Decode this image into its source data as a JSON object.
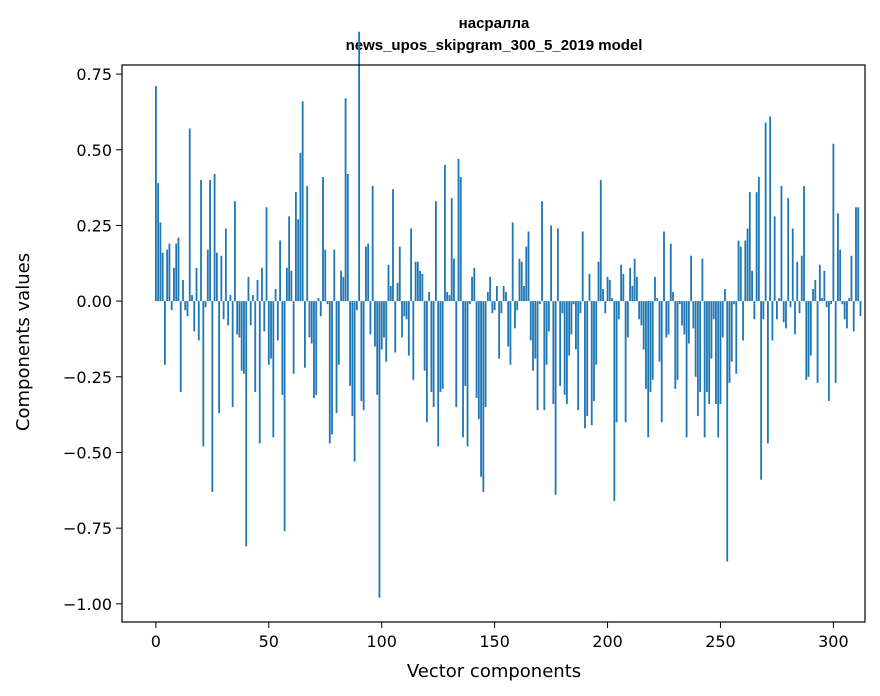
{
  "chart_data": {
    "type": "bar",
    "title_lines": [
      "насралла",
      "news_upos_skipgram_300_5_2019 model"
    ],
    "xlabel": "Vector components",
    "ylabel": "Components values",
    "xlim": [
      -15,
      314
    ],
    "ylim": [
      -1.06,
      0.78
    ],
    "xticks": [
      0,
      50,
      100,
      150,
      200,
      250,
      300
    ],
    "xtick_labels": [
      "0",
      "50",
      "100",
      "150",
      "200",
      "250",
      "300"
    ],
    "yticks": [
      0.75,
      0.5,
      0.25,
      0.0,
      -0.25,
      -0.5,
      -0.75,
      -1.0
    ],
    "ytick_labels": [
      "0.75",
      "0.50",
      "0.25",
      "0.00",
      "−0.25",
      "−0.50",
      "−0.75",
      "−1.00"
    ],
    "grid": false,
    "bar_color": "#1f77b4",
    "values": [
      0.71,
      0.39,
      0.26,
      0.16,
      -0.21,
      0.17,
      0.19,
      -0.03,
      0.11,
      0.19,
      0.21,
      -0.3,
      0.07,
      -0.03,
      -0.05,
      0.57,
      0.02,
      -0.1,
      0.11,
      -0.13,
      0.4,
      -0.48,
      -0.02,
      0.17,
      0.4,
      -0.63,
      0.42,
      0.16,
      -0.37,
      0.15,
      -0.06,
      0.24,
      -0.08,
      0.02,
      -0.35,
      0.33,
      -0.11,
      -0.12,
      -0.23,
      -0.24,
      -0.81,
      0.08,
      -0.08,
      0.02,
      -0.3,
      0.07,
      -0.47,
      0.11,
      -0.1,
      0.31,
      -0.21,
      -0.19,
      -0.45,
      0.04,
      -0.13,
      0.2,
      -0.31,
      -0.76,
      0.11,
      0.28,
      0.1,
      -0.24,
      0.36,
      0.27,
      0.49,
      0.66,
      -0.22,
      0.38,
      -0.12,
      -0.14,
      -0.32,
      -0.31,
      0.01,
      -0.05,
      0.41,
      0.17,
      -0.01,
      -0.47,
      -0.44,
      0.17,
      -0.37,
      -0.21,
      0.1,
      0.08,
      0.67,
      0.42,
      -0.28,
      -0.38,
      -0.53,
      -0.03,
      0.89,
      -0.33,
      -0.36,
      0.18,
      0.19,
      -0.11,
      0.38,
      -0.15,
      -0.31,
      -0.98,
      -0.16,
      -0.12,
      -0.2,
      0.12,
      0.05,
      0.37,
      -0.17,
      0.06,
      0.18,
      -0.12,
      -0.05,
      -0.06,
      -0.18,
      0.24,
      -0.26,
      0.13,
      0.13,
      0.1,
      0.09,
      -0.23,
      -0.4,
      0.03,
      -0.3,
      -0.35,
      0.33,
      -0.48,
      -0.3,
      -0.29,
      0.45,
      0.03,
      0.02,
      0.34,
      0.14,
      -0.35,
      0.47,
      0.41,
      -0.45,
      -0.28,
      -0.48,
      -0.01,
      0.08,
      0.11,
      -0.32,
      -0.39,
      -0.58,
      -0.63,
      -0.35,
      0.03,
      0.08,
      -0.04,
      -0.03,
      0.05,
      -0.19,
      -0.04,
      0.05,
      0.03,
      -0.15,
      -0.21,
      0.26,
      -0.09,
      -0.03,
      0.14,
      0.13,
      0.05,
      0.18,
      0.23,
      -0.13,
      -0.23,
      -0.19,
      -0.36,
      -0.01,
      0.33,
      -0.36,
      -0.21,
      -0.1,
      0.25,
      -0.34,
      -0.64,
      0.24,
      -0.28,
      -0.04,
      -0.31,
      -0.34,
      -0.18,
      -0.11,
      -0.01,
      -0.16,
      -0.36,
      -0.04,
      0.23,
      -0.42,
      -0.38,
      0.09,
      -0.41,
      -0.33,
      -0.21,
      0.13,
      0.4,
      0.04,
      -0.04,
      0.08,
      0.07,
      0.01,
      -0.66,
      -0.4,
      -0.06,
      0.12,
      0.09,
      -0.4,
      -0.12,
      0.11,
      0.05,
      0.14,
      0.08,
      -0.06,
      -0.08,
      -0.16,
      -0.29,
      -0.45,
      -0.3,
      -0.26,
      0.08,
      0.01,
      -0.2,
      -0.4,
      0.23,
      -0.12,
      -0.11,
      0.19,
      0.03,
      -0.29,
      -0.26,
      -0.01,
      -0.08,
      -0.11,
      -0.45,
      -0.14,
      0.15,
      -0.09,
      -0.25,
      -0.38,
      -0.3,
      0.14,
      -0.45,
      -0.3,
      -0.34,
      -0.19,
      -0.06,
      -0.34,
      -0.45,
      -0.34,
      -0.12,
      0.04,
      -0.86,
      -0.27,
      -0.2,
      -0.01,
      -0.24,
      0.2,
      0.18,
      -0.13,
      0.2,
      0.24,
      0.36,
      0.1,
      -0.06,
      0.36,
      0.41,
      -0.59,
      -0.06,
      0.59,
      -0.47,
      0.61,
      -0.13,
      0.28,
      -0.06,
      0.01,
      0.38,
      -0.07,
      -0.09,
      0.34,
      -0.02,
      0.24,
      -0.11,
      0.13,
      -0.04,
      0.15,
      0.38,
      -0.26,
      -0.25,
      -0.18,
      0.04,
      0.07,
      -0.27,
      0.12,
      0.01,
      0.1,
      -0.02,
      -0.33,
      -0.01,
      0.52,
      -0.27,
      0.29,
      0.17,
      -0.01,
      -0.06,
      -0.09,
      0.01,
      0.15,
      -0.1,
      0.31,
      0.31,
      -0.05
    ]
  }
}
